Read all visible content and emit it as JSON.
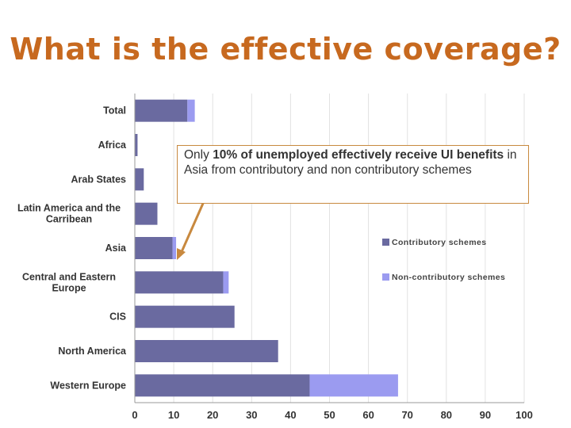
{
  "slide": {
    "title": "What is the effective coverage?"
  },
  "callout": {
    "pre": "Only ",
    "bold": "10% of unemployed effectively receive UI benefits",
    "post": " in Asia from contributory and non contributory schemes"
  },
  "colors": {
    "title": "#c7691f",
    "contributory": "#6a6aa0",
    "non_contributory": "#9b9bf0",
    "arrow": "#c8893f"
  },
  "chart_data": {
    "type": "bar",
    "orientation": "horizontal",
    "stacked": true,
    "title": "",
    "xlabel": "",
    "ylabel": "",
    "xlim": [
      0,
      100
    ],
    "xticks": [
      "0",
      "10",
      "20",
      "30",
      "40",
      "50",
      "60",
      "70",
      "80",
      "90",
      "100"
    ],
    "grid": true,
    "legend_position": "right",
    "categories": [
      "Total",
      "Africa",
      "Arab States",
      "Latin America and the Carribean",
      "Asia",
      "Central and Eastern Europe",
      "CIS",
      "North America",
      "Western Europe"
    ],
    "category_lines": [
      [
        "Total"
      ],
      [
        "Africa"
      ],
      [
        "Arab States"
      ],
      [
        "Latin America and the",
        "Carribean"
      ],
      [
        "Asia"
      ],
      [
        "Central and Eastern",
        "Europe"
      ],
      [
        "CIS"
      ],
      [
        "North America"
      ],
      [
        "Western Europe"
      ]
    ],
    "series": [
      {
        "name": "Contributory schemes",
        "values": [
          13.5,
          0.7,
          2.3,
          5.8,
          9.7,
          22.7,
          25.6,
          36.8,
          44.9
        ]
      },
      {
        "name": "Non-contributory schemes",
        "values": [
          1.9,
          0,
          0,
          0,
          0.9,
          1.4,
          0,
          0,
          22.7
        ]
      }
    ]
  }
}
